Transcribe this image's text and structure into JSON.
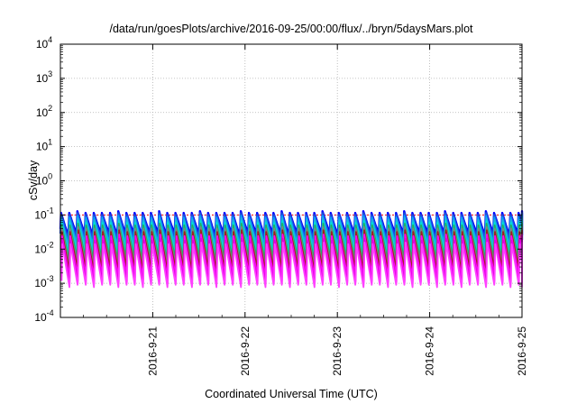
{
  "chart_data": {
    "type": "line",
    "title": "/data/run/goesPlots/archive/2016-09-25/00:00/flux/../bryn/5daysMars.plot",
    "xlabel": "Coordinated Universal Time (UTC)",
    "ylabel": "cSv/day",
    "x_scale": "time",
    "y_scale": "log",
    "xlim": [
      "2016-09-20T00:00",
      "2016-09-25T00:00"
    ],
    "ylim": [
      0.0001,
      10000
    ],
    "x_ticks": [
      "2016-9-21",
      "2016-9-22",
      "2016-9-23",
      "2016-9-24",
      "2016-9-25"
    ],
    "y_ticks": [
      {
        "base": "10",
        "exp": "-4",
        "value": 0.0001
      },
      {
        "base": "10",
        "exp": "-3",
        "value": 0.001
      },
      {
        "base": "10",
        "exp": "-2",
        "value": 0.01
      },
      {
        "base": "10",
        "exp": "-1",
        "value": 0.1
      },
      {
        "base": "10",
        "exp": "0",
        "value": 1
      },
      {
        "base": "10",
        "exp": "1",
        "value": 10
      },
      {
        "base": "10",
        "exp": "2",
        "value": 100
      },
      {
        "base": "10",
        "exp": "3",
        "value": 1000
      },
      {
        "base": "10",
        "exp": "4",
        "value": 10000
      }
    ],
    "grid": true,
    "reference_line": {
      "value": 0.1,
      "color": "#ff0000",
      "style": "dotted"
    },
    "pattern": {
      "start": "2016-09-20T00:00",
      "cycles_per_day": 11.3,
      "peak_value": 0.1,
      "series_count": 11
    },
    "series": [
      {
        "color": "#0000ff",
        "peak": 0.115,
        "trough": 0.03
      },
      {
        "color": "#1f4fd8",
        "peak": 0.1,
        "trough": 0.022
      },
      {
        "color": "#00a0ff",
        "peak": 0.085,
        "trough": 0.016
      },
      {
        "color": "#20b0e0",
        "peak": 0.072,
        "trough": 0.012
      },
      {
        "color": "#00e0d0",
        "peak": 0.06,
        "trough": 0.0085
      },
      {
        "color": "#20b060",
        "peak": 0.05,
        "trough": 0.006
      },
      {
        "color": "#808080",
        "peak": 0.04,
        "trough": 0.0042
      },
      {
        "color": "#a02020",
        "peak": 0.032,
        "trough": 0.003
      },
      {
        "color": "#ff00ff",
        "peak": 0.024,
        "trough": 0.0019
      },
      {
        "color": "#e000e0",
        "peak": 0.018,
        "trough": 0.0012
      },
      {
        "color": "#ff40ff",
        "peak": 0.014,
        "trough": 0.0009
      }
    ]
  }
}
